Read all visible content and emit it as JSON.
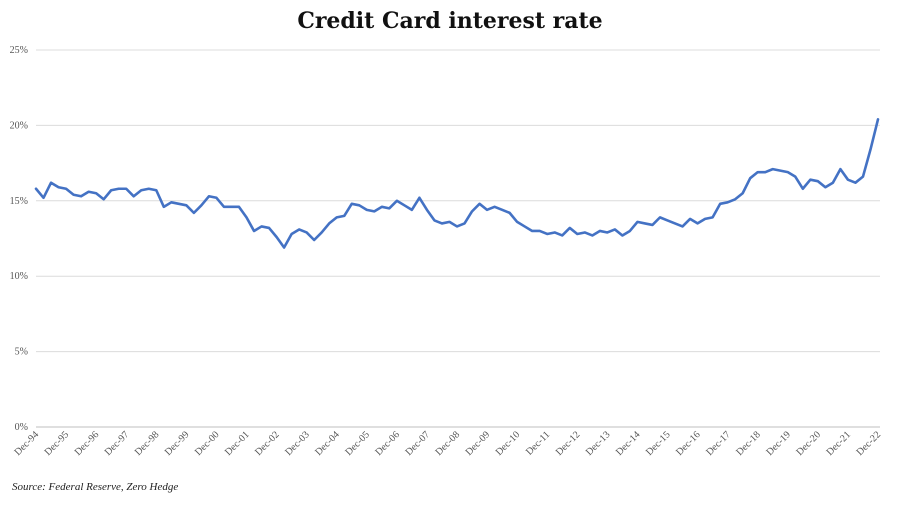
{
  "chart_data": {
    "type": "line",
    "title": "Credit Card interest rate",
    "source": "Source: Federal Reserve, Zero Hedge",
    "ylim": [
      0,
      25
    ],
    "yticks": [
      0,
      5,
      10,
      15,
      20,
      25
    ],
    "ytick_labels": [
      "0%",
      "5%",
      "10%",
      "15%",
      "20%",
      "25%"
    ],
    "xtick_labels": [
      "Dec-94",
      "Dec-95",
      "Dec-96",
      "Dec-97",
      "Dec-98",
      "Dec-99",
      "Dec-00",
      "Dec-01",
      "Dec-02",
      "Dec-03",
      "Dec-04",
      "Dec-05",
      "Dec-06",
      "Dec-07",
      "Dec-08",
      "Dec-09",
      "Dec-10",
      "Dec-11",
      "Dec-12",
      "Dec-13",
      "Dec-14",
      "Dec-15",
      "Dec-16",
      "Dec-17",
      "Dec-18",
      "Dec-19",
      "Dec-20",
      "Dec-21",
      "Dec-22"
    ],
    "grid": true,
    "line_color": "#4472C4",
    "series": [
      {
        "values": [
          15.8,
          15.2,
          16.2,
          15.9,
          15.8,
          15.4,
          15.3,
          15.6,
          15.5,
          15.1,
          15.7,
          15.8,
          15.8,
          15.3,
          15.7,
          15.8,
          15.7,
          14.6,
          14.9,
          14.8,
          14.7,
          14.2,
          14.7,
          15.3,
          15.2,
          14.6,
          14.6,
          14.6,
          13.9,
          13.0,
          13.3,
          13.2,
          12.6,
          11.9,
          12.8,
          13.1,
          12.9,
          12.4,
          12.9,
          13.5,
          13.9,
          14.0,
          14.8,
          14.7,
          14.4,
          14.3,
          14.6,
          14.5,
          15.0,
          14.7,
          14.4,
          15.2,
          14.4,
          13.7,
          13.5,
          13.6,
          13.3,
          13.5,
          14.3,
          14.8,
          14.4,
          14.6,
          14.4,
          14.2,
          13.6,
          13.3,
          13.0,
          13.0,
          12.8,
          12.9,
          12.7,
          13.2,
          12.8,
          12.9,
          12.7,
          13.0,
          12.9,
          13.1,
          12.7,
          13.0,
          13.6,
          13.5,
          13.4,
          13.9,
          13.7,
          13.5,
          13.3,
          13.8,
          13.5,
          13.8,
          13.9,
          14.8,
          14.9,
          15.1,
          15.5,
          16.5,
          16.9,
          16.9,
          17.1,
          17.0,
          16.9,
          16.6,
          15.8,
          16.4,
          16.3,
          15.9,
          16.2,
          17.1,
          16.4,
          16.2,
          16.6,
          18.4,
          20.4
        ]
      }
    ]
  }
}
